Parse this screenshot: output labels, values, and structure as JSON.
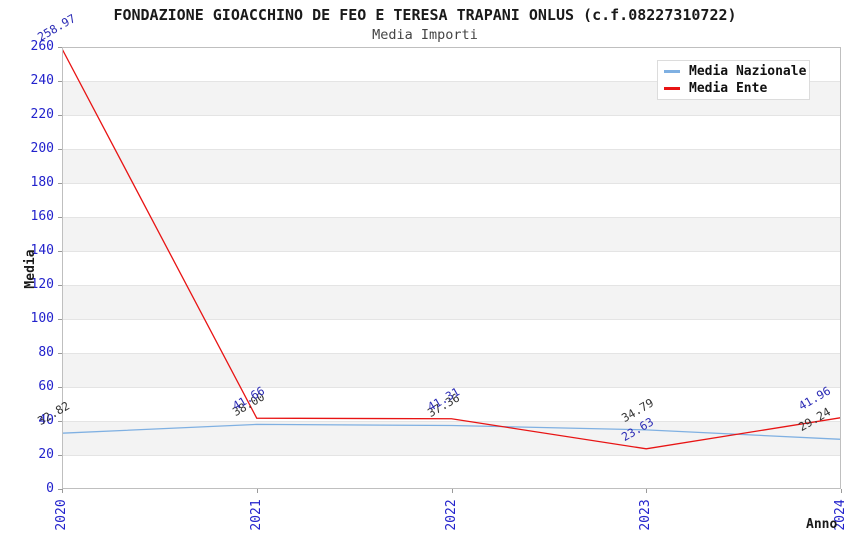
{
  "header": {
    "title": "FONDAZIONE GIOACCHINO DE FEO E TERESA TRAPANI ONLUS (c.f.08227310722)",
    "subtitle": "Media Importi"
  },
  "chart_data": {
    "type": "line",
    "x": [
      "2020",
      "2021",
      "2022",
      "2023",
      "2024"
    ],
    "xlabel": "Anno",
    "ylabel": "Media",
    "ylim": [
      0,
      260
    ],
    "ytick_step": 20,
    "grid": "horizontal-alternating-bands",
    "legend_position": "top-right",
    "series": [
      {
        "name": "Media Nazionale",
        "color": "#7fb0e2",
        "label_color": "#333333",
        "values": [
          32.82,
          38.0,
          37.36,
          34.79,
          29.24
        ]
      },
      {
        "name": "Media Ente",
        "color": "#e81414",
        "label_color": "#2b2bb5",
        "values": [
          258.97,
          41.66,
          41.31,
          23.63,
          41.96
        ]
      }
    ]
  },
  "colors": {
    "tick_label": "#2222cc",
    "band": "#f3f3f3",
    "band_border": "#e4e4e4",
    "plot_border": "#bfbfbf",
    "axis_text": "#1a1a1a"
  }
}
